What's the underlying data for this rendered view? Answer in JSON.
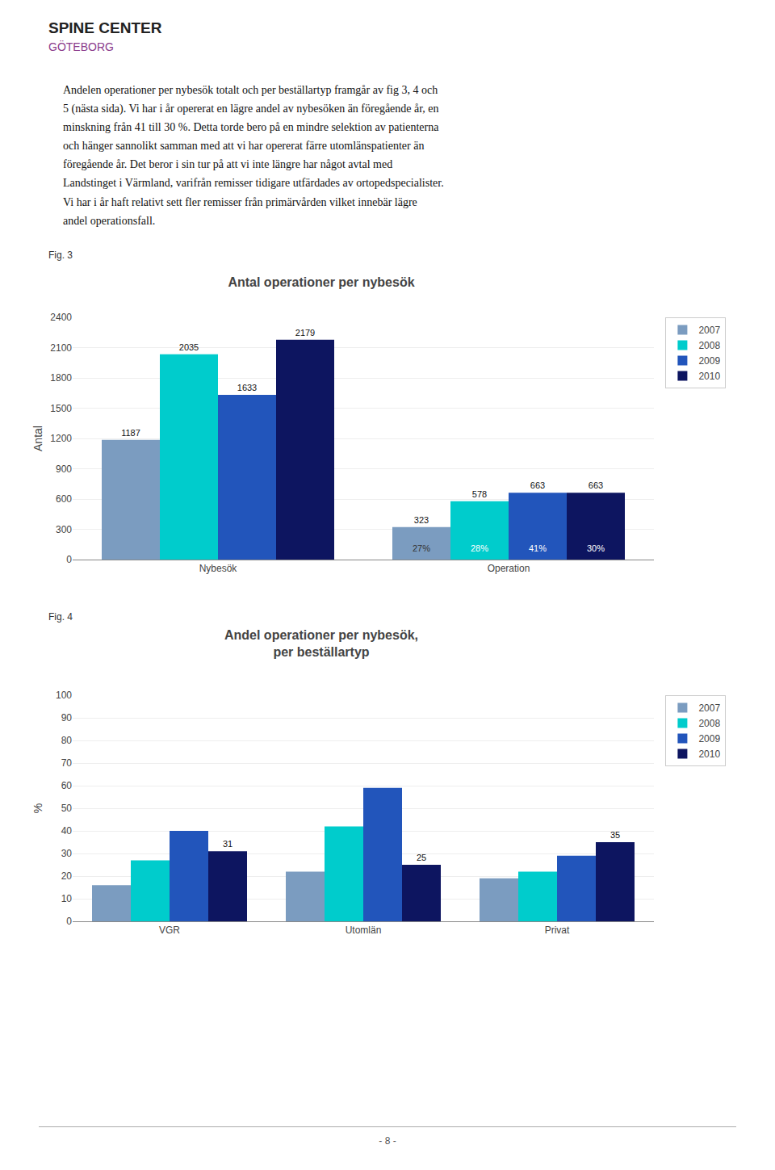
{
  "page_texts": {
    "logo": [
      "SPINE CENTER",
      "GÖTEBORG"
    ],
    "body": [
      "Andelen operationer per nybesök totalt och per beställartyp framgår av fig 3, 4 och",
      "5 (nästa sida). Vi har i år opererat en lägre andel av nybesöken än föregående år, en",
      "minskning från 41 till 30 %. Detta torde bero på en mindre selektion av patienterna",
      "och hänger sannolikt samman med att vi har opererat färre utomlänspatienter än",
      "föregående år. Det beror i sin tur på att vi inte längre har något avtal med",
      "Landstinget i Värmland, varifrån remisser tidigare utfärdades av ortopedspecialister.",
      "Vi har i år haft relativt sett fler remisser från primärvården vilket innebär lägre",
      "andel operationsfall."
    ],
    "figure_labels": [
      "Fig. 3",
      "Fig. 4"
    ],
    "footer": "- 8 -"
  },
  "chart_data": [
    {
      "type": "bar",
      "title": "Antal operationer per nybesök",
      "ylabel": "Antal",
      "categories": [
        "Nybesök",
        "Operation"
      ],
      "series": [
        {
          "name": "2007",
          "color": "#7B9CC0",
          "values": [
            1187,
            323
          ]
        },
        {
          "name": "2008",
          "color": "#00CCCC",
          "values": [
            2035,
            578
          ]
        },
        {
          "name": "2009",
          "color": "#2255BB",
          "values": [
            1633,
            663
          ]
        },
        {
          "name": "2010",
          "color": "#0D1560",
          "values": [
            2179,
            663
          ]
        }
      ],
      "ylim": [
        0,
        2400
      ],
      "yticks": [
        0,
        300,
        600,
        900,
        1200,
        1500,
        1800,
        2100,
        2400
      ],
      "grid": true,
      "legend": "right",
      "data_labels": true,
      "annotations": [
        {
          "category": "Operation",
          "series": "2007",
          "text": "27%"
        },
        {
          "category": "Operation",
          "series": "2008",
          "text": "28%"
        },
        {
          "category": "Operation",
          "series": "2009",
          "text": "41%"
        },
        {
          "category": "Operation",
          "series": "2010",
          "text": "30%"
        }
      ]
    },
    {
      "type": "bar",
      "title": "Andel operationer per nybesök,\nper beställartyp",
      "ylabel": "%",
      "categories": [
        "VGR",
        "Utomlän",
        "Privat"
      ],
      "series": [
        {
          "name": "2007",
          "color": "#7B9CC0",
          "values": [
            16,
            22,
            19
          ]
        },
        {
          "name": "2008",
          "color": "#00CCCC",
          "values": [
            27,
            42,
            22
          ]
        },
        {
          "name": "2009",
          "color": "#2255BB",
          "values": [
            40,
            59,
            29
          ]
        },
        {
          "name": "2010",
          "color": "#0D1560",
          "values": [
            31,
            25,
            35
          ],
          "data_labels": true
        }
      ],
      "ylim": [
        0,
        100
      ],
      "yticks": [
        0,
        10,
        20,
        30,
        40,
        50,
        60,
        70,
        80,
        90,
        100
      ],
      "grid": true,
      "legend": "right"
    }
  ]
}
